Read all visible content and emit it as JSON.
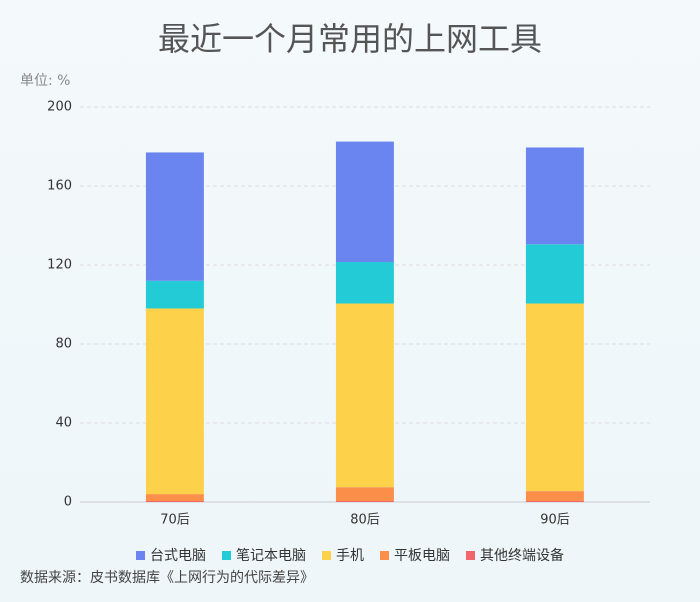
{
  "chart_data": {
    "type": "stacked_bar",
    "title": "最近一个月常用的上网工具",
    "y_axis_label": "单位: %",
    "categories": [
      "70后",
      "80后",
      "90后"
    ],
    "series": [
      {
        "name": "台式电脑",
        "color": "#6a85f0",
        "values": [
          65,
          61,
          49
        ]
      },
      {
        "name": "笔记本电脑",
        "color": "#22cbd6",
        "values": [
          14,
          21,
          30
        ]
      },
      {
        "name": "手机",
        "color": "#fdd14a",
        "values": [
          94,
          93,
          95
        ]
      },
      {
        "name": "平板电脑",
        "color": "#fb8f4a",
        "values": [
          3.5,
          7,
          5
        ]
      },
      {
        "name": "其他终端设备",
        "color": "#f0666a",
        "values": [
          0.5,
          0.5,
          0.5
        ]
      }
    ],
    "ylim": [
      0,
      200
    ],
    "yticks": [
      0,
      40,
      80,
      120,
      160,
      200
    ],
    "grid": true,
    "source": "数据来源：皮书数据库《上网行为的代际差异》"
  }
}
